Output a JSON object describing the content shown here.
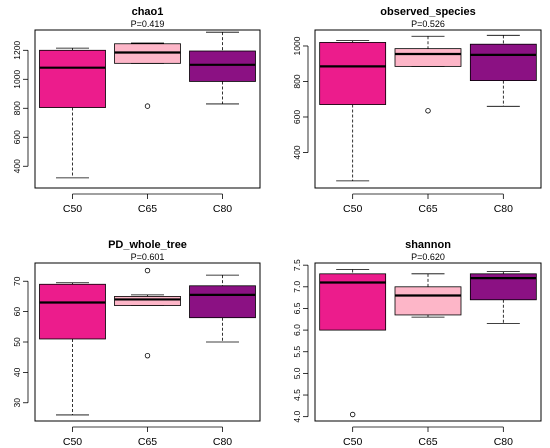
{
  "chart_data": [
    {
      "type": "box",
      "title": "chao1",
      "subtitle": "P=0.419",
      "categories": [
        "C50",
        "C65",
        "C80"
      ],
      "ylim": [
        250,
        1340
      ],
      "yticks": [
        400,
        600,
        800,
        1000,
        1200
      ],
      "boxes": [
        {
          "category": "C50",
          "min": 320,
          "q1": 805,
          "median": 1080,
          "q3": 1200,
          "max": 1215,
          "outliers": [],
          "color": "#EC1C8C"
        },
        {
          "category": "C65",
          "min": 1110,
          "q1": 1110,
          "median": 1185,
          "q3": 1245,
          "max": 1250,
          "outliers": [
            815
          ],
          "color": "#FDB6C8"
        },
        {
          "category": "C80",
          "min": 830,
          "q1": 985,
          "median": 1100,
          "q3": 1195,
          "max": 1325,
          "outliers": [],
          "color": "#8B1183"
        }
      ]
    },
    {
      "type": "box",
      "title": "observed_species",
      "subtitle": "P=0.526",
      "categories": [
        "C50",
        "C65",
        "C80"
      ],
      "ylim": [
        200,
        1090
      ],
      "yticks": [
        400,
        600,
        800,
        1000
      ],
      "boxes": [
        {
          "category": "C50",
          "min": 240,
          "q1": 670,
          "median": 885,
          "q3": 1020,
          "max": 1030,
          "outliers": [],
          "color": "#EC1C8C"
        },
        {
          "category": "C65",
          "min": 885,
          "q1": 885,
          "median": 955,
          "q3": 985,
          "max": 1055,
          "outliers": [
            635
          ],
          "color": "#FDB6C8"
        },
        {
          "category": "C80",
          "min": 660,
          "q1": 805,
          "median": 950,
          "q3": 1010,
          "max": 1060,
          "outliers": [],
          "color": "#8B1183"
        }
      ]
    },
    {
      "type": "box",
      "title": "PD_whole_tree",
      "subtitle": "P=0.601",
      "categories": [
        "C50",
        "C65",
        "C80"
      ],
      "ylim": [
        24,
        76
      ],
      "yticks": [
        30,
        40,
        50,
        60,
        70
      ],
      "boxes": [
        {
          "category": "C50",
          "min": 26,
          "q1": 51,
          "median": 63,
          "q3": 69,
          "max": 69.5,
          "outliers": [],
          "color": "#EC1C8C"
        },
        {
          "category": "C65",
          "min": 62,
          "q1": 62,
          "median": 64,
          "q3": 65,
          "max": 65.5,
          "outliers": [
            73.5,
            45.5
          ],
          "color": "#FDB6C8"
        },
        {
          "category": "C80",
          "min": 50,
          "q1": 58,
          "median": 65.5,
          "q3": 68.5,
          "max": 72,
          "outliers": [],
          "color": "#8B1183"
        }
      ]
    },
    {
      "type": "box",
      "title": "shannon",
      "subtitle": "P=0.620",
      "categories": [
        "C50",
        "C65",
        "C80"
      ],
      "ylim": [
        3.9,
        7.55
      ],
      "yticks": [
        4.0,
        4.5,
        5.0,
        5.5,
        6.0,
        6.5,
        7.0,
        7.5
      ],
      "boxes": [
        {
          "category": "C50",
          "min": 6.0,
          "q1": 6.0,
          "median": 7.1,
          "q3": 7.3,
          "max": 7.4,
          "outliers": [
            4.05
          ],
          "color": "#EC1C8C"
        },
        {
          "category": "C65",
          "min": 6.3,
          "q1": 6.35,
          "median": 6.8,
          "q3": 7.0,
          "max": 7.3,
          "outliers": [],
          "color": "#FDB6C8"
        },
        {
          "category": "C80",
          "min": 6.15,
          "q1": 6.7,
          "median": 7.2,
          "q3": 7.3,
          "max": 7.35,
          "outliers": [],
          "color": "#8B1183"
        }
      ]
    }
  ]
}
